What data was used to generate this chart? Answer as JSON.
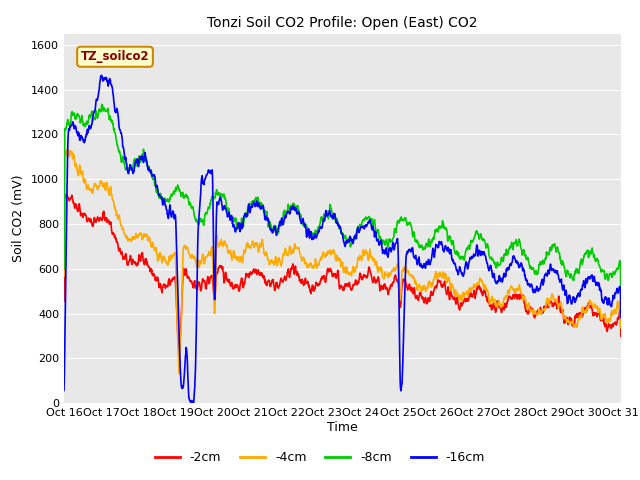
{
  "title": "Tonzi Soil CO2 Profile: Open (East) CO2",
  "ylabel": "Soil CO2 (mV)",
  "xlabel": "Time",
  "watermark": "TZ_soilco2",
  "ylim": [
    0,
    1650
  ],
  "yticks": [
    0,
    200,
    400,
    600,
    800,
    1000,
    1200,
    1400,
    1600
  ],
  "xtick_labels": [
    "Oct 16",
    "Oct 17",
    "Oct 18",
    "Oct 19",
    "Oct 20",
    "Oct 21",
    "Oct 22",
    "Oct 23",
    "Oct 24",
    "Oct 25",
    "Oct 26",
    "Oct 27",
    "Oct 28",
    "Oct 29",
    "Oct 30",
    "Oct 31"
  ],
  "legend_labels": [
    "-2cm",
    "-4cm",
    "-8cm",
    "-16cm"
  ],
  "legend_colors": [
    "#ff0000",
    "#ffaa00",
    "#00cc00",
    "#0000ff"
  ],
  "line_width": 1.2,
  "fig_bg": "#ffffff",
  "plot_bg": "#e8e8e8"
}
